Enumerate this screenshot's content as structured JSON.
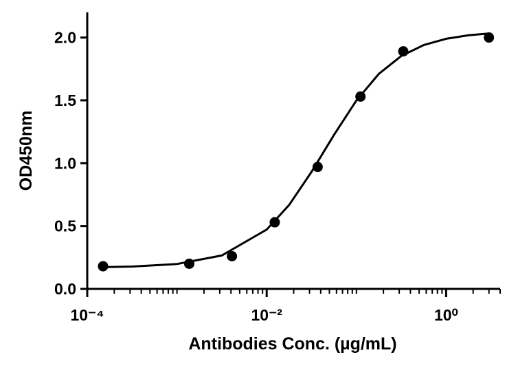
{
  "chart_data": {
    "type": "scatter",
    "xlabel": "Antibodies Conc. (µg/mL)",
    "ylabel": "OD450nm",
    "xscale": "log",
    "xlim": [
      0.0001,
      4
    ],
    "ylim": [
      0,
      2.2
    ],
    "xticks": [
      {
        "value": 0.0001,
        "label": "10⁻⁴"
      },
      {
        "value": 0.01,
        "label": "10⁻²"
      },
      {
        "value": 1,
        "label": "10⁰"
      }
    ],
    "xminorticks": [
      0.0002,
      0.0003,
      0.0004,
      0.0005,
      0.0006,
      0.0007,
      0.0008,
      0.0009,
      0.001,
      0.002,
      0.003,
      0.004,
      0.005,
      0.006,
      0.007,
      0.008,
      0.009,
      0.02,
      0.03,
      0.04,
      0.05,
      0.06,
      0.07,
      0.08,
      0.09,
      0.1,
      0.2,
      0.3,
      0.4,
      0.5,
      0.6,
      0.7,
      0.8,
      0.9,
      2,
      3,
      4
    ],
    "yticks": [
      {
        "value": 0,
        "label": "0.0"
      },
      {
        "value": 0.5,
        "label": "0.5"
      },
      {
        "value": 1,
        "label": "1.0"
      },
      {
        "value": 1.5,
        "label": "1.5"
      },
      {
        "value": 2,
        "label": "2.0"
      }
    ],
    "color": "#000000",
    "points": {
      "x": [
        0.00015,
        0.00137,
        0.0041,
        0.0123,
        0.037,
        0.111,
        0.333,
        3
      ],
      "values": [
        0.18,
        0.2,
        0.26,
        0.53,
        0.97,
        1.53,
        1.89,
        2.0
      ]
    },
    "fit": {
      "x": [
        0.000145,
        0.000316,
        0.001,
        0.00316,
        0.01,
        0.0178,
        0.0316,
        0.0562,
        0.1,
        0.178,
        0.316,
        0.562,
        1,
        1.78,
        2.88
      ],
      "values": [
        0.173,
        0.178,
        0.198,
        0.266,
        0.472,
        0.668,
        0.931,
        1.225,
        1.499,
        1.711,
        1.853,
        1.94,
        1.99,
        2.018,
        2.031
      ]
    }
  }
}
